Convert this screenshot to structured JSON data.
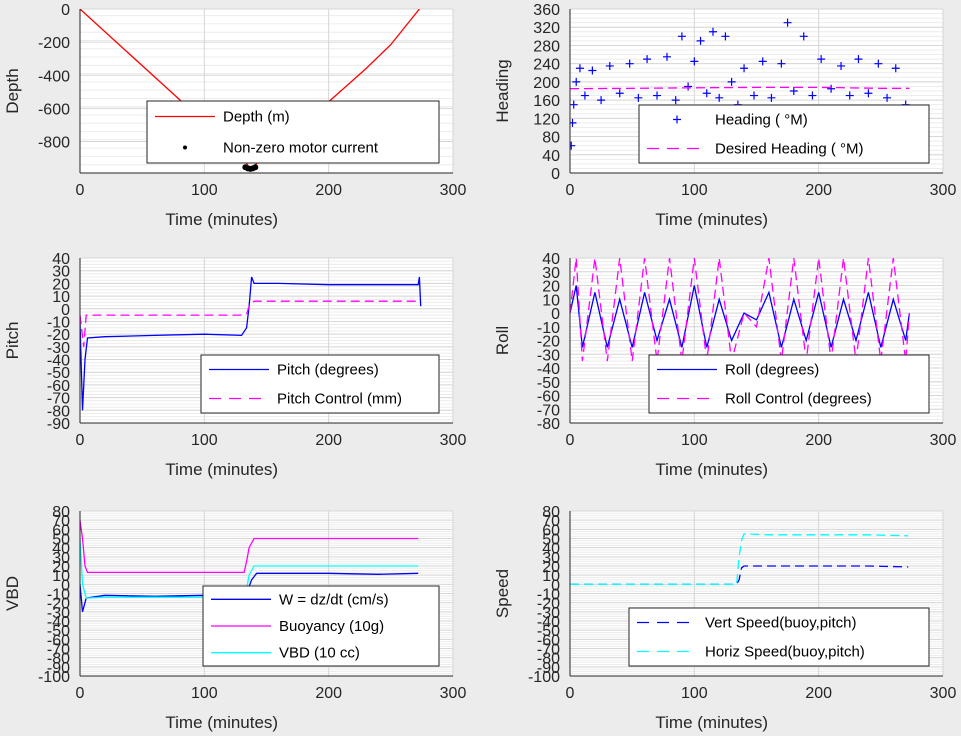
{
  "chart_data": [
    {
      "id": "depth",
      "type": "line",
      "xlabel": "Time (minutes)",
      "ylabel": "Depth",
      "xlim": [
        0,
        300
      ],
      "ylim": [
        -990,
        0
      ],
      "xticks": [
        0,
        100,
        200,
        300
      ],
      "yticks": [
        0,
        -200,
        -400,
        -600,
        -800
      ],
      "legend_position": "bottom-right",
      "series": [
        {
          "name": "Depth (m)",
          "style": "line",
          "color": "#ff0000",
          "x": [
            0,
            30,
            60,
            90,
            110,
            130,
            137,
            145,
            160,
            180,
            200,
            230,
            250,
            273
          ],
          "y": [
            0,
            -205,
            -410,
            -615,
            -750,
            -890,
            -965,
            -915,
            -820,
            -690,
            -560,
            -360,
            -215,
            0
          ]
        },
        {
          "name": "Non-zero motor current",
          "style": "dot",
          "color": "#000000",
          "x": [
            133,
            135,
            137,
            139,
            141
          ],
          "y": [
            -955,
            -962,
            -965,
            -962,
            -955
          ]
        }
      ]
    },
    {
      "id": "heading",
      "type": "scatter",
      "xlabel": "Time (minutes)",
      "ylabel": "Heading",
      "xlim": [
        0,
        300
      ],
      "ylim": [
        0,
        360
      ],
      "xticks": [
        0,
        100,
        200,
        300
      ],
      "yticks": [
        0,
        40,
        80,
        120,
        160,
        200,
        240,
        280,
        320,
        360
      ],
      "legend_position": "bottom-right",
      "series": [
        {
          "name": "Heading (  °M)",
          "style": "plus",
          "color": "#0000ff",
          "x": [
            1,
            2,
            3,
            5,
            8,
            12,
            18,
            25,
            32,
            40,
            48,
            55,
            62,
            70,
            78,
            85,
            90,
            95,
            100,
            105,
            110,
            115,
            120,
            125,
            130,
            135,
            140,
            148,
            155,
            162,
            170,
            175,
            180,
            188,
            195,
            202,
            210,
            218,
            225,
            232,
            240,
            248,
            255,
            262,
            270
          ],
          "y": [
            60,
            110,
            150,
            200,
            230,
            170,
            225,
            160,
            235,
            175,
            240,
            165,
            250,
            170,
            255,
            160,
            300,
            190,
            245,
            290,
            175,
            310,
            165,
            300,
            200,
            150,
            230,
            170,
            245,
            165,
            240,
            330,
            180,
            300,
            170,
            250,
            185,
            235,
            170,
            250,
            175,
            240,
            165,
            230,
            150
          ]
        },
        {
          "name": "Desired Heading (     °M)",
          "style": "dashed",
          "color": "#ff00ff",
          "x": [
            0,
            50,
            100,
            150,
            200,
            250,
            273
          ],
          "y": [
            185,
            186,
            187,
            188,
            188,
            186,
            186
          ]
        }
      ]
    },
    {
      "id": "pitch",
      "type": "line",
      "xlabel": "Time (minutes)",
      "ylabel": "Pitch",
      "xlim": [
        0,
        300
      ],
      "ylim": [
        -90,
        40
      ],
      "xticks": [
        0,
        100,
        200,
        300
      ],
      "yticks": [
        40,
        30,
        20,
        10,
        0,
        -10,
        -20,
        -30,
        -40,
        -50,
        -60,
        -70,
        -80,
        -90
      ],
      "legend_position": "bottom-right",
      "series": [
        {
          "name": "Pitch (degrees)",
          "style": "line",
          "color": "#0000ff",
          "x": [
            0,
            2,
            4,
            6,
            20,
            60,
            100,
            130,
            134,
            136,
            138,
            140,
            160,
            200,
            240,
            272,
            273,
            274
          ],
          "y": [
            -10,
            -80,
            -40,
            -23,
            -22,
            -21,
            -20,
            -21,
            -15,
            2,
            25,
            20,
            20,
            19,
            19,
            19,
            25,
            2
          ]
        },
        {
          "name": "Pitch Control (mm)",
          "style": "dashed",
          "color": "#ff00ff",
          "x": [
            0,
            3,
            5,
            60,
            130,
            134,
            136,
            140,
            200,
            273
          ],
          "y": [
            -5,
            -30,
            -5,
            -5,
            -5,
            -4,
            2,
            6,
            6,
            6
          ]
        }
      ]
    },
    {
      "id": "roll",
      "type": "line",
      "xlabel": "Time (minutes)",
      "ylabel": "Roll",
      "xlim": [
        0,
        300
      ],
      "ylim": [
        -80,
        40
      ],
      "xticks": [
        0,
        100,
        200,
        300
      ],
      "yticks": [
        40,
        30,
        20,
        10,
        0,
        -10,
        -20,
        -30,
        -40,
        -50,
        -60,
        -70,
        -80
      ],
      "legend_position": "bottom-right",
      "series": [
        {
          "name": "Roll (degrees)",
          "style": "line",
          "color": "#0000ff",
          "x": [
            0,
            5,
            10,
            20,
            30,
            40,
            50,
            60,
            70,
            80,
            90,
            100,
            110,
            120,
            130,
            140,
            150,
            160,
            170,
            180,
            190,
            200,
            210,
            220,
            230,
            240,
            250,
            260,
            270,
            273
          ],
          "y": [
            0,
            20,
            -25,
            15,
            -25,
            10,
            -25,
            15,
            -20,
            10,
            -25,
            20,
            -25,
            10,
            -20,
            0,
            -5,
            15,
            -25,
            10,
            -20,
            15,
            -25,
            10,
            -20,
            15,
            -25,
            10,
            -20,
            0
          ]
        },
        {
          "name": "Roll Control (degrees)",
          "style": "dashed",
          "color": "#ff00ff",
          "x": [
            0,
            5,
            10,
            20,
            30,
            40,
            50,
            60,
            70,
            80,
            90,
            100,
            110,
            120,
            130,
            140,
            150,
            160,
            170,
            180,
            190,
            200,
            210,
            220,
            230,
            240,
            250,
            260,
            270,
            273
          ],
          "y": [
            0,
            40,
            -35,
            40,
            -35,
            40,
            -35,
            40,
            -35,
            40,
            -35,
            40,
            -35,
            40,
            -35,
            0,
            -10,
            40,
            -35,
            40,
            -35,
            40,
            -35,
            40,
            -35,
            40,
            -35,
            40,
            -35,
            0
          ]
        }
      ]
    },
    {
      "id": "vbd",
      "type": "line",
      "xlabel": "Time (minutes)",
      "ylabel": "VBD",
      "xlim": [
        0,
        300
      ],
      "ylim": [
        -100,
        80
      ],
      "xticks": [
        0,
        100,
        200,
        300
      ],
      "yticks": [
        80,
        70,
        60,
        50,
        40,
        30,
        20,
        10,
        0,
        -10,
        -20,
        -30,
        -40,
        -50,
        -60,
        -70,
        -80,
        -90,
        -100
      ],
      "legend_position": "bottom-right",
      "series": [
        {
          "name": "W = dz/dt (cm/s)",
          "style": "line",
          "color": "#0000ff",
          "x": [
            0,
            2,
            5,
            20,
            60,
            100,
            130,
            134,
            138,
            142,
            160,
            200,
            240,
            272
          ],
          "y": [
            0,
            -30,
            -15,
            -12,
            -13,
            -12,
            -13,
            -10,
            5,
            12,
            12,
            12,
            11,
            12
          ]
        },
        {
          "name": "Buoyancy (10g)",
          "style": "line",
          "color": "#ff00ff",
          "x": [
            0,
            2,
            4,
            6,
            60,
            100,
            132,
            134,
            136,
            140,
            200,
            272
          ],
          "y": [
            70,
            50,
            20,
            13,
            13,
            13,
            13,
            25,
            40,
            50,
            50,
            50
          ]
        },
        {
          "name": "VBD (10 cc)",
          "style": "line",
          "color": "#00ffff",
          "x": [
            0,
            2,
            5,
            20,
            60,
            100,
            132,
            134,
            136,
            140,
            200,
            272
          ],
          "y": [
            50,
            0,
            -15,
            -14,
            -14,
            -14,
            -13,
            -5,
            10,
            20,
            20,
            20
          ]
        }
      ]
    },
    {
      "id": "speed",
      "type": "line",
      "xlabel": "Time (minutes)",
      "ylabel": "Speed",
      "xlim": [
        0,
        300
      ],
      "ylim": [
        -100,
        80
      ],
      "xticks": [
        0,
        100,
        200,
        300
      ],
      "yticks": [
        80,
        70,
        60,
        50,
        40,
        30,
        20,
        10,
        0,
        -10,
        -20,
        -30,
        -40,
        -50,
        -60,
        -70,
        -80,
        -90,
        -100
      ],
      "legend_position": "bottom-right",
      "series": [
        {
          "name": "Vert Speed(buoy,pitch)",
          "style": "dashed",
          "color": "#0000ff",
          "x": [
            0,
            134,
            136,
            138,
            140,
            160,
            200,
            240,
            272
          ],
          "y": [
            0,
            0,
            5,
            18,
            20,
            20,
            20,
            20,
            19
          ]
        },
        {
          "name": "Horiz Speed(buoy,pitch)",
          "style": "dashed",
          "color": "#00ffff",
          "x": [
            0,
            134,
            136,
            138,
            140,
            160,
            200,
            240,
            272
          ],
          "y": [
            0,
            0,
            30,
            48,
            55,
            54,
            54,
            54,
            53
          ]
        }
      ]
    }
  ]
}
